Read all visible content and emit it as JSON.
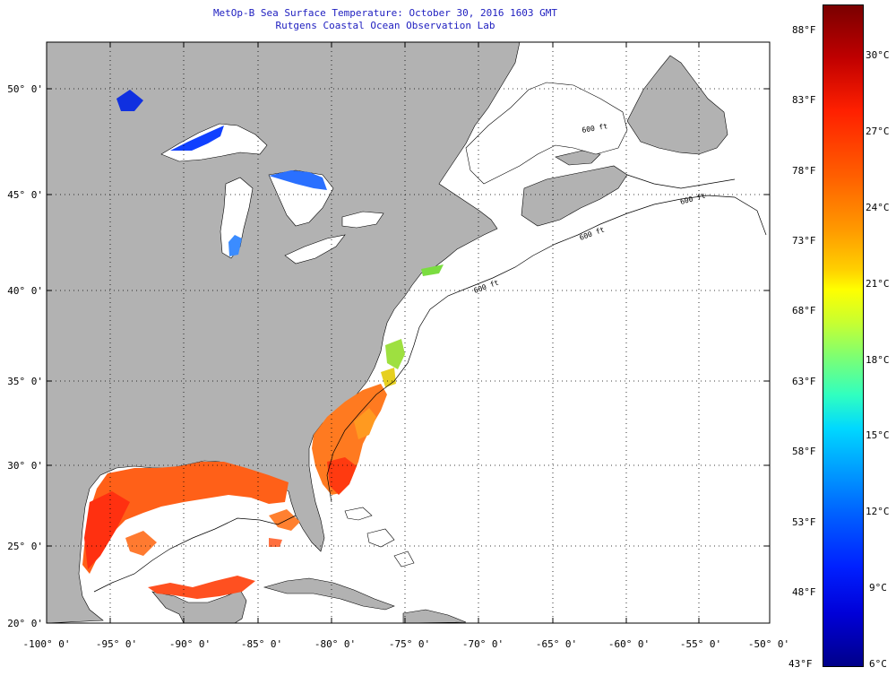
{
  "header": {
    "title_line1": "MetOp-B Sea Surface Temperature:  October 30, 2016 1603 GMT",
    "title_line2": "Rutgens Coastal Ocean Observation Lab"
  },
  "map": {
    "lon_ticks": [
      "-100° 0'",
      "-95° 0'",
      "-90° 0'",
      "-85° 0'",
      "-80° 0'",
      "-75° 0'",
      "-70° 0'",
      "-65° 0'",
      "-60° 0'",
      "-55° 0'",
      "-50° 0'"
    ],
    "lat_ticks": [
      "50° 0'",
      "45° 0'",
      "40° 0'",
      "35° 0'",
      "30° 0'",
      "25° 0'",
      "20° 0'"
    ],
    "contour_labels": [
      "600 ft",
      "600 ft",
      "600 ft",
      "600 ft"
    ],
    "colors": {
      "land": "#b2b2b2",
      "ocean": "#ffffff",
      "grid": "#000000"
    }
  },
  "colorbar": {
    "fahrenheit_labels": [
      "88°F",
      "83°F",
      "78°F",
      "73°F",
      "68°F",
      "63°F",
      "58°F",
      "53°F",
      "48°F",
      "43°F"
    ],
    "celsius_labels": [
      "30°C",
      "27°C",
      "24°C",
      "21°C",
      "18°C",
      "15°C",
      "12°C",
      "9°C",
      "6°C"
    ],
    "range_f": [
      43,
      90
    ],
    "range_c": [
      6,
      32
    ]
  }
}
